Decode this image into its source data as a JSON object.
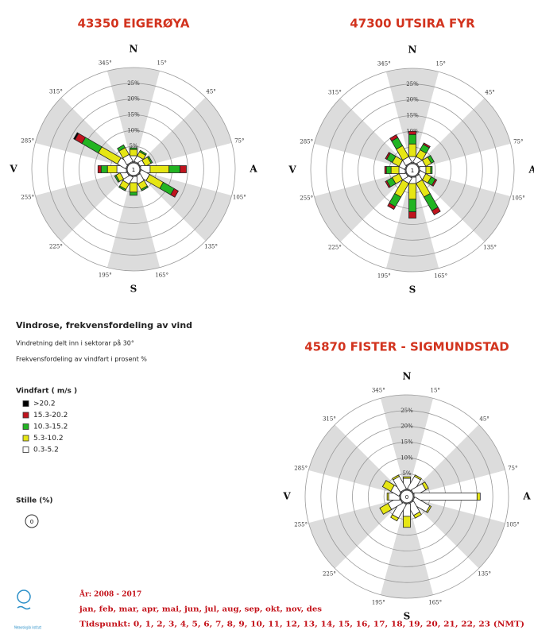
{
  "legend": {
    "title": "Vindfart ( m/s )",
    "items": [
      {
        "name": ">20.2",
        "color": "#000000"
      },
      {
        "name": "15.3-20.2",
        "color": "#c0141e"
      },
      {
        "name": "10.3-15.2",
        "color": "#22b422"
      },
      {
        "name": "5.3-10.2",
        "color": "#e6e614"
      },
      {
        "name": "0.3-5.2",
        "color": "#ffffff"
      }
    ]
  },
  "description": {
    "title": "Vindrose, frekvensfordeling av vind",
    "lines": [
      "Vindretning delt inn i sektorar på 30°",
      "Frekvensfordeling av vindfart i prosent %"
    ]
  },
  "calm_legend": {
    "label": "Stille (%)",
    "value": 0
  },
  "footer": {
    "logo": "Meteorologisk institutt",
    "years": "År: 2008 - 2017",
    "months": "jan, feb, mar, apr, mai, jun, jul, aug, sep, okt, nov, des",
    "hours": "Tidspunkt: 0, 1, 2, 3, 4, 5, 6, 7, 8, 9, 10, 11, 12, 13, 14, 15, 16, 17, 18, 19, 20, 21, 22, 23 (NMT)"
  },
  "chart_data": [
    {
      "type": "windrose",
      "title": "43350 EIGERØYA",
      "calm": 1,
      "compass": [
        "N",
        "A",
        "S",
        "V"
      ],
      "sector_labels": [
        "15°",
        "45°",
        "75°",
        "105°",
        "135°",
        "165°",
        "195°",
        "225°",
        "255°",
        "285°",
        "315°",
        "345°"
      ],
      "rlim": [
        0,
        30
      ],
      "rticks": [
        {
          "value": 5,
          "label": "5%"
        },
        {
          "value": 10,
          "label": "10%"
        },
        {
          "value": 15,
          "label": "15%"
        },
        {
          "value": 20,
          "label": "20%"
        },
        {
          "value": 25,
          "label": "25%"
        }
      ],
      "series": [
        {
          "values": [
            0,
            0,
            0,
            0,
            0,
            0,
            0,
            0,
            0,
            0,
            0.5,
            0
          ]
        },
        {
          "values": [
            0,
            0,
            0,
            2,
            1.5,
            0,
            0,
            0,
            0,
            1,
            2.5,
            0
          ]
        },
        {
          "values": [
            0.5,
            0.5,
            0.5,
            3.5,
            4,
            0.5,
            1,
            0.5,
            0.5,
            2,
            6,
            1
          ]
        },
        {
          "values": [
            2,
            1.5,
            2,
            6,
            5,
            2,
            3,
            2,
            1.5,
            3,
            7,
            2.5
          ]
        },
        {
          "values": [
            2,
            2,
            1.5,
            3,
            3,
            2.5,
            2,
            2.5,
            2,
            3,
            3,
            2.5
          ]
        }
      ]
    },
    {
      "type": "windrose",
      "title": "47300 UTSIRA FYR",
      "calm": 1,
      "compass": [
        "N",
        "A",
        "S",
        "V"
      ],
      "sector_labels": [
        "15°",
        "45°",
        "75°",
        "105°",
        "135°",
        "165°",
        "195°",
        "225°",
        "255°",
        "285°",
        "315°",
        "345°"
      ],
      "rlim": [
        0,
        30
      ],
      "rticks": [
        {
          "value": 5,
          "label": "5%"
        },
        {
          "value": 10,
          "label": "10%"
        },
        {
          "value": 15,
          "label": "15%"
        },
        {
          "value": 20,
          "label": "20%"
        },
        {
          "value": 25,
          "label": "25%"
        }
      ],
      "series": [
        {
          "values": [
            0,
            0,
            0,
            0,
            0,
            0,
            0,
            0,
            0,
            0,
            0,
            0
          ]
        },
        {
          "values": [
            1,
            0.5,
            0,
            0,
            0.5,
            1.5,
            2,
            1,
            0.5,
            0.5,
            0.5,
            1
          ]
        },
        {
          "values": [
            3,
            2,
            1,
            0.5,
            1.5,
            5,
            4,
            3.5,
            2,
            1.5,
            2,
            3
          ]
        },
        {
          "values": [
            4,
            2.5,
            2,
            1.5,
            2,
            5,
            5,
            5,
            2.5,
            2.5,
            2.5,
            4
          ]
        },
        {
          "values": [
            2,
            2,
            2,
            2,
            2,
            2,
            2,
            2,
            2,
            2,
            2,
            2
          ]
        }
      ]
    },
    {
      "type": "windrose",
      "title": "45870 FISTER - SIGMUNDSTAD",
      "calm": 0,
      "compass": [
        "N",
        "A",
        "S",
        "V"
      ],
      "sector_labels": [
        "15°",
        "45°",
        "75°",
        "105°",
        "135°",
        "165°",
        "195°",
        "225°",
        "255°",
        "285°",
        "315°",
        "345°"
      ],
      "rlim": [
        0,
        30
      ],
      "rticks": [
        {
          "value": 5,
          "label": "5%"
        },
        {
          "value": 10,
          "label": "10%"
        },
        {
          "value": 15,
          "label": "15%"
        },
        {
          "value": 20,
          "label": "20%"
        },
        {
          "value": 25,
          "label": "25%"
        }
      ],
      "series": [
        {
          "values": [
            0,
            0,
            0,
            0,
            0,
            0,
            0,
            0,
            0,
            0,
            0,
            0
          ]
        },
        {
          "values": [
            0,
            0,
            0,
            0,
            0,
            0,
            0,
            0,
            0,
            0,
            0,
            0
          ]
        },
        {
          "values": [
            0,
            0,
            0,
            0,
            0,
            0,
            0,
            0,
            0,
            0,
            0,
            0
          ]
        },
        {
          "values": [
            0.5,
            0.5,
            1,
            1,
            0.5,
            1,
            3.5,
            1,
            3,
            0.5,
            3,
            0.5
          ]
        },
        {
          "values": [
            3.5,
            4.5,
            4,
            20,
            5.5,
            4,
            4,
            5,
            4,
            3.5,
            3,
            4.5
          ]
        }
      ]
    }
  ]
}
